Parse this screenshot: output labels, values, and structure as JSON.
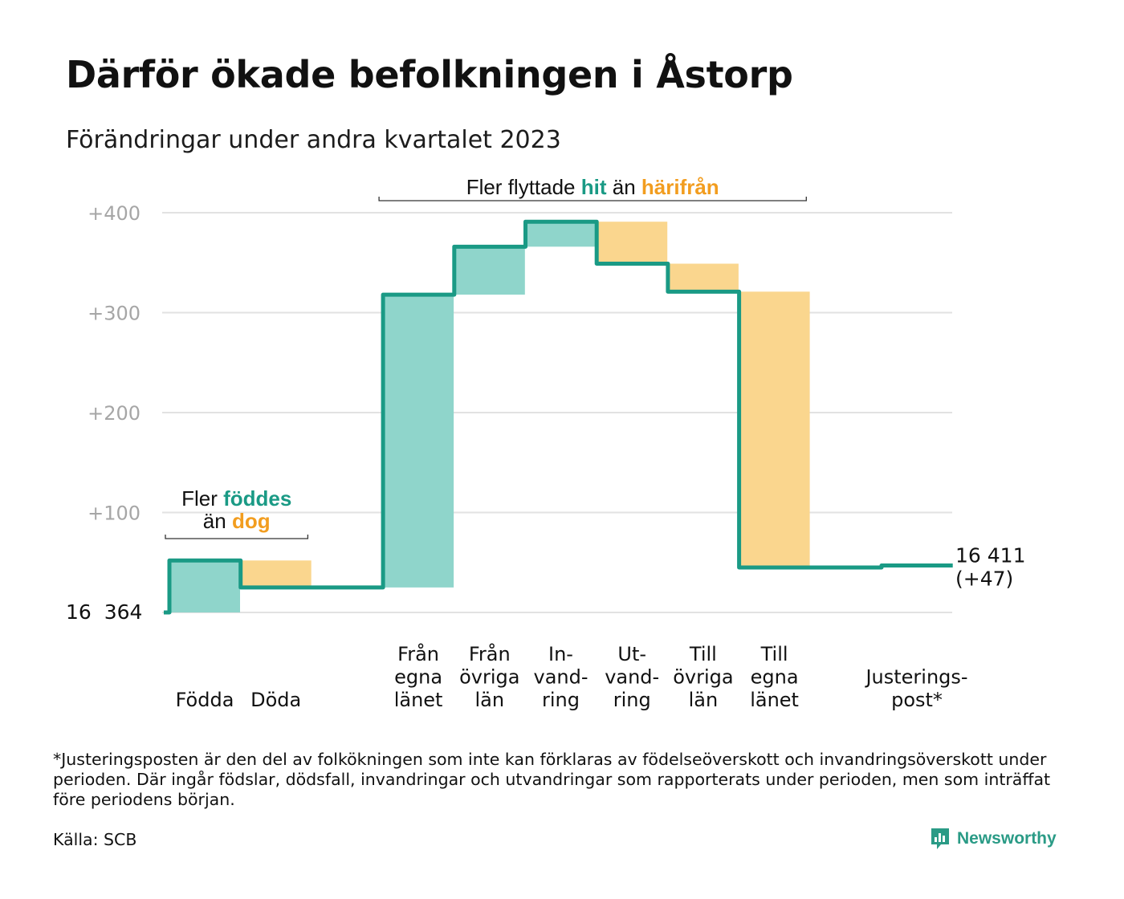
{
  "title": "Därför ökade befolkningen i Åstorp",
  "subtitle": "Förändringar under andra kvartalet 2023",
  "colors": {
    "increase": "#8fd5cb",
    "decrease": "#fad68e",
    "line": "#1a9a85",
    "teal_text": "#1a9a85",
    "orange_text": "#f29d1f",
    "grid": "#e2e2e2",
    "tick": "#a6a6a6"
  },
  "chart_data": {
    "type": "waterfall",
    "base_value": 16364,
    "base_label": "16  364",
    "end_label_lines": [
      "16 411",
      "(+47)"
    ],
    "yticks": [
      {
        "value": 100,
        "label": "+100"
      },
      {
        "value": 200,
        "label": "+200"
      },
      {
        "value": 300,
        "label": "+300"
      },
      {
        "value": 400,
        "label": "+400"
      }
    ],
    "ylim": [
      0,
      410
    ],
    "steps": [
      {
        "label_lines": [
          "Födda"
        ],
        "value": 52
      },
      {
        "label_lines": [
          "Döda"
        ],
        "value": -27
      },
      {
        "label_lines": [],
        "value": 0
      },
      {
        "label_lines": [
          "Från",
          "egna",
          "länet"
        ],
        "value": 293
      },
      {
        "label_lines": [
          "Från",
          "övriga",
          "län"
        ],
        "value": 48
      },
      {
        "label_lines": [
          "In-",
          "vand-",
          "ring"
        ],
        "value": 25
      },
      {
        "label_lines": [
          "Ut-",
          "vand-",
          "ring"
        ],
        "value": -42
      },
      {
        "label_lines": [
          "Till",
          "övriga",
          "län"
        ],
        "value": -28
      },
      {
        "label_lines": [
          "Till",
          "egna",
          "länet"
        ],
        "value": -276
      },
      {
        "label_lines": [],
        "value": 0
      },
      {
        "label_lines": [
          "Justerings-",
          "post*"
        ],
        "value": 2
      }
    ],
    "annotations": [
      {
        "lines": [
          [
            {
              "text": "Fler ",
              "style": "plain"
            },
            {
              "text": "föddes",
              "style": "teal"
            }
          ],
          [
            {
              "text": "än ",
              "style": "plain"
            },
            {
              "text": "dog",
              "style": "orange"
            }
          ]
        ],
        "from_step": 0,
        "to_step": 1
      },
      {
        "lines": [
          [
            {
              "text": "Fler flyttade ",
              "style": "plain"
            },
            {
              "text": "hit",
              "style": "teal"
            },
            {
              "text": " än ",
              "style": "plain"
            },
            {
              "text": "härifrån",
              "style": "orange"
            }
          ]
        ],
        "from_step": 3,
        "to_step": 8
      }
    ]
  },
  "footnote": "*Justeringsposten är den del av folkökningen som inte kan förklaras av födelseöverskott och invandringsöverskott under perioden. Där ingår födslar, dödsfall, invandringar och utvandringar som rapporterats under perioden, men som inträffat före periodens början.",
  "source": "Källa: SCB",
  "brand": {
    "name": "Newsworthy",
    "icon": "newsworthy-logo-icon"
  }
}
